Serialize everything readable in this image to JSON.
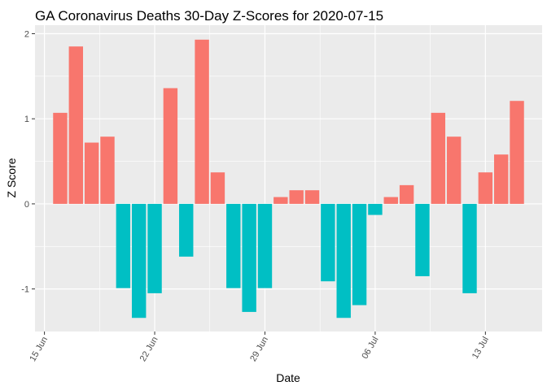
{
  "chart_data": {
    "type": "bar",
    "title": "GA Coronavirus Deaths 30-Day Z-Scores for 2020-07-15",
    "xlabel": "Date",
    "ylabel": "Z Score",
    "x_start_day": 15,
    "x_range_days": [
      14.4,
      46.6
    ],
    "ylim": [
      -1.5,
      2.1
    ],
    "x_ticks": [
      {
        "day": 15,
        "label": "15 Jun"
      },
      {
        "day": 22,
        "label": "22 Jun"
      },
      {
        "day": 29,
        "label": "29 Jun"
      },
      {
        "day": 36,
        "label": "06 Jul"
      },
      {
        "day": 43,
        "label": "13 Jul"
      }
    ],
    "y_ticks": [
      {
        "value": -1,
        "label": "-1"
      },
      {
        "value": 0,
        "label": "0"
      },
      {
        "value": 1,
        "label": "1"
      },
      {
        "value": 2,
        "label": "2"
      }
    ],
    "categories": [
      "2020-06-16",
      "2020-06-17",
      "2020-06-18",
      "2020-06-19",
      "2020-06-20",
      "2020-06-21",
      "2020-06-22",
      "2020-06-23",
      "2020-06-24",
      "2020-06-25",
      "2020-06-26",
      "2020-06-27",
      "2020-06-28",
      "2020-06-29",
      "2020-06-30",
      "2020-07-01",
      "2020-07-02",
      "2020-07-03",
      "2020-07-04",
      "2020-07-05",
      "2020-07-06",
      "2020-07-07",
      "2020-07-08",
      "2020-07-09",
      "2020-07-10",
      "2020-07-11",
      "2020-07-12",
      "2020-07-13",
      "2020-07-14",
      "2020-07-15"
    ],
    "values": [
      1.07,
      1.85,
      0.72,
      0.79,
      -0.99,
      -1.34,
      -1.05,
      1.36,
      -0.62,
      1.93,
      0.37,
      -0.99,
      -1.27,
      -0.99,
      0.08,
      0.16,
      0.16,
      -0.91,
      -1.34,
      -1.19,
      -0.13,
      0.08,
      0.22,
      -0.85,
      1.07,
      0.79,
      -1.05,
      0.37,
      0.58,
      1.21
    ],
    "positive_color": "#F8766D",
    "negative_color": "#00BFC4",
    "panel_color": "#EBEBEB",
    "grid_color": "#FFFFFF"
  }
}
